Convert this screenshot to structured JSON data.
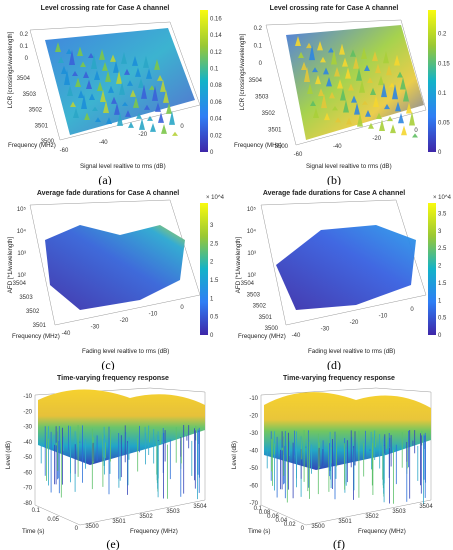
{
  "chart_data": [
    {
      "id": "a",
      "type": "surface",
      "title": "Level crossing rate for Case A channel",
      "zlabel": "LCR [crossings/wavelength]",
      "xlabel": "Signal level realtive to rms (dB)",
      "ylabel": "Frequency (MHz)",
      "z_ticks": [
        "0",
        "0.1",
        "0.2"
      ],
      "x_ticks": [
        "-60",
        "-40",
        "-20",
        "0"
      ],
      "y_ticks": [
        "3500",
        "3501",
        "3502",
        "3503",
        "3504"
      ],
      "colorbar_ticks": [
        "0",
        "0.02",
        "0.04",
        "0.06",
        "0.08",
        "0.1",
        "0.12",
        "0.14",
        "0.16"
      ],
      "colorbar_range": [
        0,
        0.17
      ],
      "sublabel": "(a)"
    },
    {
      "id": "b",
      "type": "surface",
      "title": "Level crossing rate for Case A channel",
      "zlabel": "LCR [crossings/wavelength]",
      "xlabel": "Signal level realtive to rms (dB)",
      "ylabel": "Frequency (MHz)",
      "z_ticks": [
        "0",
        "0.1",
        "0.2"
      ],
      "x_ticks": [
        "-60",
        "-40",
        "-20",
        "0"
      ],
      "y_ticks": [
        "3500",
        "3501",
        "3502",
        "3503",
        "3504"
      ],
      "colorbar_ticks": [
        "0",
        "0.05",
        "0.1",
        "0.15",
        "0.2"
      ],
      "colorbar_range": [
        0,
        0.24
      ],
      "sublabel": "(b)"
    },
    {
      "id": "c",
      "type": "surface",
      "title": "Average fade durations for Case A channel",
      "zlabel": "AFD [*1/wavelength]",
      "xlabel": "Fading level realtive to rms (dB)",
      "ylabel": "Frequency (MHz)",
      "z_ticks": [
        "10^2",
        "10^3",
        "10^4",
        "10^5"
      ],
      "x_ticks": [
        "-40",
        "-30",
        "-20",
        "-10",
        "0"
      ],
      "y_ticks": [
        "3501",
        "3502",
        "3503",
        "3504"
      ],
      "colorbar_ticks": [
        "0",
        "0.5",
        "1",
        "1.5",
        "2",
        "2.5",
        "3"
      ],
      "colorbar_range": [
        0,
        3.6
      ],
      "colorbar_exponent": "× 10^4",
      "sublabel": "(c)"
    },
    {
      "id": "d",
      "type": "surface",
      "title": "Average fade durations for Case A channel",
      "zlabel": "AFD [*1/wavelength]",
      "xlabel": "Fading level realtive to rms (dB)",
      "ylabel": "Frequency (MHz)",
      "z_ticks": [
        "10^2",
        "10^3",
        "10^4",
        "10^5"
      ],
      "x_ticks": [
        "-40",
        "-30",
        "-20",
        "-10",
        "0"
      ],
      "y_ticks": [
        "3500",
        "3501",
        "3502",
        "3503",
        "3504"
      ],
      "colorbar_ticks": [
        "0",
        "0.5",
        "1",
        "1.5",
        "2",
        "2.5",
        "3",
        "3.5"
      ],
      "colorbar_range": [
        0,
        3.8
      ],
      "colorbar_exponent": "× 10^4",
      "sublabel": "(d)"
    },
    {
      "id": "e",
      "type": "surface",
      "title": "Time-varying frequency response",
      "zlabel": "Level (dB)",
      "xlabel": "Frequency (MHz)",
      "ylabel": "Time (s)",
      "z_ticks": [
        "-80",
        "-70",
        "-60",
        "-50",
        "-40",
        "-30",
        "-20",
        "-10"
      ],
      "x_ticks": [
        "3500",
        "3501",
        "3502",
        "3503",
        "3504"
      ],
      "y_ticks": [
        "0",
        "0.05",
        "0.1"
      ],
      "sublabel": "(e)"
    },
    {
      "id": "f",
      "type": "surface",
      "title": "Time-varying frequency response",
      "zlabel": "Level (dB)",
      "xlabel": "Frequency (MHz)",
      "ylabel": "Time (s)",
      "z_ticks": [
        "-70",
        "-60",
        "-50",
        "-40",
        "-30",
        "-20",
        "-10"
      ],
      "x_ticks": [
        "3500",
        "3501",
        "3502",
        "3503",
        "3504"
      ],
      "y_ticks": [
        "0",
        "0.02",
        "0.04",
        "0.06",
        "0.08",
        "0.1"
      ],
      "sublabel": "(f)"
    }
  ]
}
